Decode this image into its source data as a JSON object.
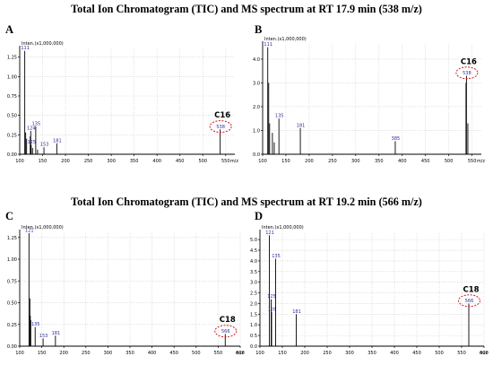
{
  "headings": [
    "Total Ion Chromatogram (TIC) and MS spectrum at RT 17.9 min (538 m/z)",
    "Total Ion Chromatogram (TIC) and MS spectrum at RT 19.2 min (566 m/z)"
  ],
  "colors": {
    "axis": "#000000",
    "grid": "#c8c8c8",
    "peak": "#000000",
    "peak_label": "#2b2b9a",
    "highlight": "#d01818"
  },
  "chart_data": [
    {
      "type": "bar",
      "panel": "A",
      "ylabel": "Inten.(x1,000,000)",
      "xlabel": "m/z",
      "xlim": [
        100,
        570
      ],
      "ylim": [
        0,
        1.35
      ],
      "xticks": [
        100,
        150,
        200,
        250,
        300,
        350,
        400,
        450,
        500,
        550
      ],
      "yticks": [
        0,
        0.25,
        0.5,
        0.75,
        1,
        1.25
      ],
      "ytick_labels": [
        "0.00",
        "0.25",
        "0.50",
        "0.75",
        "1.00",
        "1.25"
      ],
      "peaks": [
        {
          "x": 111,
          "y": 1.33,
          "label": "111"
        },
        {
          "x": 113,
          "y": 0.28
        },
        {
          "x": 115,
          "y": 0.2
        },
        {
          "x": 123,
          "y": 0.23
        },
        {
          "x": 124,
          "y": 0.3,
          "label": "124"
        },
        {
          "x": 125,
          "y": 0.12,
          "label": "125"
        },
        {
          "x": 128,
          "y": 0.08
        },
        {
          "x": 135,
          "y": 0.36,
          "label": "135"
        },
        {
          "x": 139,
          "y": 0.06
        },
        {
          "x": 153,
          "y": 0.09,
          "label": "153"
        },
        {
          "x": 181,
          "y": 0.14,
          "label": "181"
        },
        {
          "x": 538,
          "y": 0.32,
          "label": "538"
        }
      ],
      "annotation": {
        "text": "C16",
        "peak": "538"
      }
    },
    {
      "type": "bar",
      "panel": "B",
      "ylabel": "Inten.(x1,000,000)",
      "xlabel": "m/z",
      "xlim": [
        100,
        570
      ],
      "ylim": [
        0,
        4.6
      ],
      "xticks": [
        100,
        150,
        200,
        250,
        300,
        350,
        400,
        450,
        500,
        550
      ],
      "yticks": [
        0,
        1,
        2,
        3,
        4
      ],
      "ytick_labels": [
        "0.0",
        "1.0",
        "2.0",
        "3.0",
        "4.0"
      ],
      "peaks": [
        {
          "x": 111,
          "y": 4.5,
          "label": "111"
        },
        {
          "x": 113,
          "y": 3.0
        },
        {
          "x": 115,
          "y": 1.3
        },
        {
          "x": 121,
          "y": 0.9
        },
        {
          "x": 125,
          "y": 0.5
        },
        {
          "x": 135,
          "y": 1.5,
          "label": "135"
        },
        {
          "x": 181,
          "y": 1.1,
          "label": "181"
        },
        {
          "x": 385,
          "y": 0.55,
          "label": "385"
        },
        {
          "x": 537,
          "y": 3.0
        },
        {
          "x": 538,
          "y": 3.3,
          "label": "538"
        },
        {
          "x": 541,
          "y": 1.3
        }
      ],
      "annotation": {
        "text": "C16",
        "peak": "538"
      }
    },
    {
      "type": "bar",
      "panel": "C",
      "ylabel": "Inten.(x1,000,000)",
      "xlabel": "m/z",
      "xlim": [
        100,
        600
      ],
      "ylim": [
        0,
        1.3
      ],
      "xticks": [
        100,
        150,
        200,
        250,
        300,
        350,
        400,
        450,
        500,
        550,
        600
      ],
      "yticks": [
        0,
        0.25,
        0.5,
        0.75,
        1,
        1.25
      ],
      "ytick_labels": [
        "0.00",
        "0.25",
        "0.50",
        "0.75",
        "1.00",
        "1.25"
      ],
      "peaks": [
        {
          "x": 121,
          "y": 1.3,
          "label": "121"
        },
        {
          "x": 123,
          "y": 0.55
        },
        {
          "x": 124,
          "y": 0.35
        },
        {
          "x": 125,
          "y": 0.3
        },
        {
          "x": 135,
          "y": 0.22,
          "label": "135"
        },
        {
          "x": 153,
          "y": 0.09,
          "label": "153"
        },
        {
          "x": 181,
          "y": 0.12,
          "label": "181"
        },
        {
          "x": 566,
          "y": 0.14,
          "label": "566"
        }
      ],
      "annotation": {
        "text": "C18",
        "peak": "566"
      }
    },
    {
      "type": "bar",
      "panel": "D",
      "ylabel": "Inten.(x1,000,000)",
      "xlabel": "m/z",
      "xlim": [
        100,
        600
      ],
      "ylim": [
        0,
        5.3
      ],
      "xticks": [
        100,
        150,
        200,
        250,
        300,
        350,
        400,
        450,
        500,
        550,
        600
      ],
      "yticks": [
        0,
        0.5,
        1,
        1.5,
        2,
        2.5,
        3,
        3.5,
        4,
        4.5,
        5
      ],
      "ytick_labels": [
        "0.0",
        "0.5",
        "1.0",
        "1.5",
        "2.0",
        "2.5",
        "3.0",
        "3.5",
        "4.0",
        "4.5",
        "5.0"
      ],
      "peaks": [
        {
          "x": 121,
          "y": 5.2,
          "label": "121"
        },
        {
          "x": 125,
          "y": 2.2,
          "label": "125"
        },
        {
          "x": 126,
          "y": 1.6,
          "label": "126"
        },
        {
          "x": 135,
          "y": 4.1,
          "label": "135"
        },
        {
          "x": 181,
          "y": 1.5,
          "label": "181"
        },
        {
          "x": 566,
          "y": 2.0,
          "label": "566"
        }
      ],
      "annotation": {
        "text": "C18",
        "peak": "566"
      }
    }
  ]
}
